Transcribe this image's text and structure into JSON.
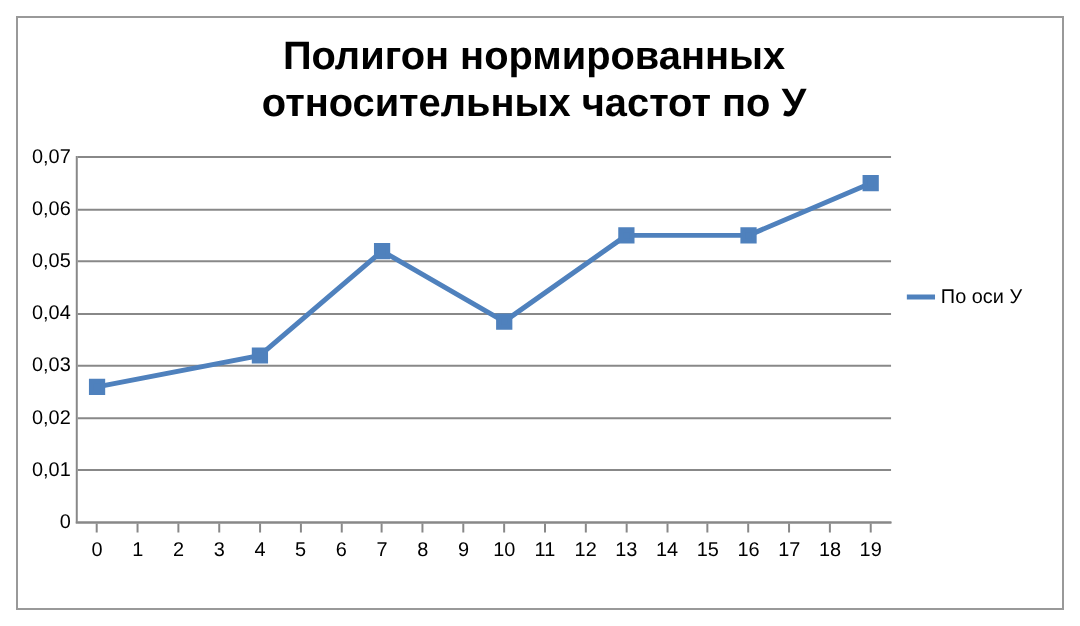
{
  "chart_data": {
    "type": "line",
    "title": [
      "Полигон нормированных",
      "относительных частот по У"
    ],
    "series": [
      {
        "name": "По оси У",
        "color": "#4f81bd",
        "x": [
          0,
          4,
          7,
          10,
          13,
          16,
          19
        ],
        "values": [
          0.026,
          0.032,
          0.052,
          0.0385,
          0.055,
          0.055,
          0.065
        ]
      }
    ],
    "xlim": [
      -0.5,
      19.5
    ],
    "xticks": [
      0,
      1,
      2,
      3,
      4,
      5,
      6,
      7,
      8,
      9,
      10,
      11,
      12,
      13,
      14,
      15,
      16,
      17,
      18,
      19
    ],
    "ylim": [
      0,
      0.07
    ],
    "yticks": [
      {
        "value": 0,
        "label": "0"
      },
      {
        "value": 0.01,
        "label": "0,01"
      },
      {
        "value": 0.02,
        "label": "0,02"
      },
      {
        "value": 0.03,
        "label": "0,03"
      },
      {
        "value": 0.04,
        "label": "0,04"
      },
      {
        "value": 0.05,
        "label": "0,05"
      },
      {
        "value": 0.06,
        "label": "0,06"
      },
      {
        "value": 0.07,
        "label": "0,07"
      }
    ],
    "grid": "y",
    "legend": "right",
    "marker": "square",
    "line_style": "solid"
  }
}
